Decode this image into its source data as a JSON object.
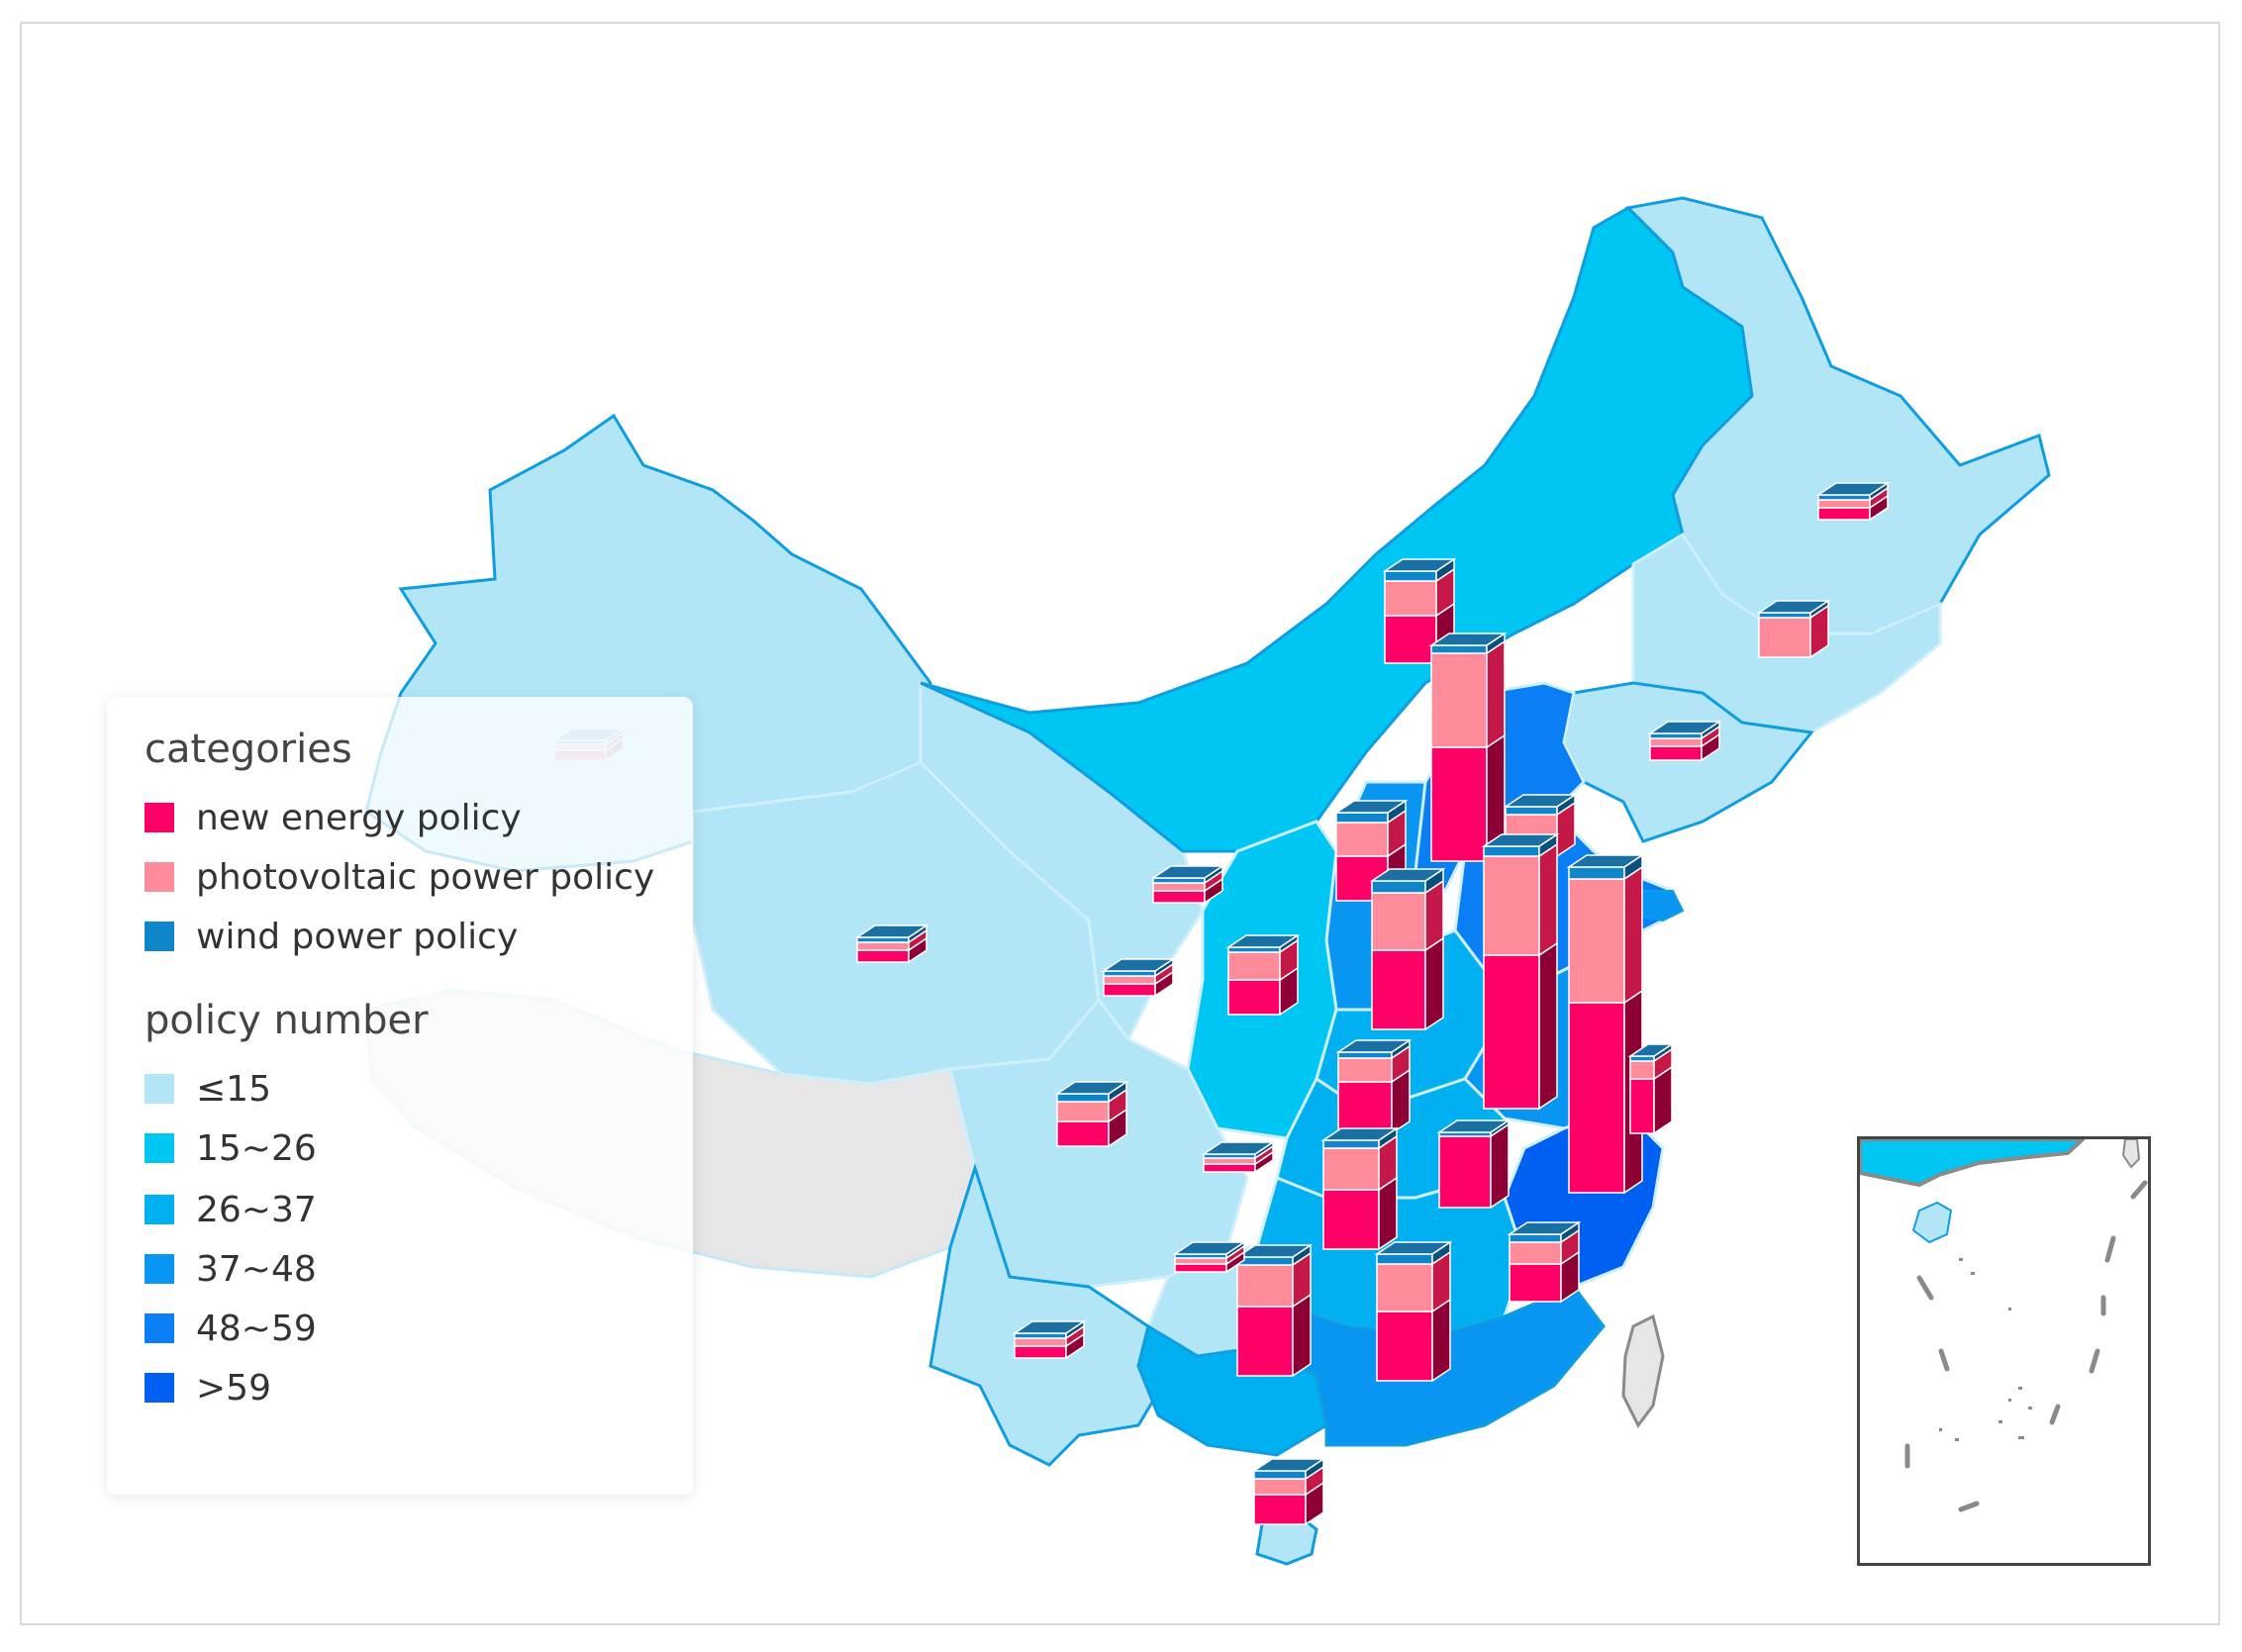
{
  "legend": {
    "categories_heading": "categories",
    "categories": [
      {
        "label": "new energy policy",
        "color": "#ff0066"
      },
      {
        "label": "photovoltaic power policy",
        "color": "#ff8a9a"
      },
      {
        "label": "wind power policy",
        "color": "#0e86c9"
      }
    ],
    "scale_heading": "policy number",
    "scale": [
      {
        "label": "≤15",
        "color": "#b2e6f7"
      },
      {
        "label": "15~26",
        "color": "#00c6f3"
      },
      {
        "label": "26~37",
        "color": "#00b0f0"
      },
      {
        "label": "37~48",
        "color": "#0896f2"
      },
      {
        "label": "48~59",
        "color": "#0a7ef5"
      },
      {
        "label": ">59",
        "color": "#0060f2"
      }
    ]
  },
  "colors": {
    "new_energy_side": "#8d0036",
    "photovoltaic_side": "#c41848",
    "wind_side": "#0b4f7d",
    "border": "#0f9de0",
    "inner_border": "#cfeffb",
    "uncolored_region": "#e6e6e6"
  }
}
